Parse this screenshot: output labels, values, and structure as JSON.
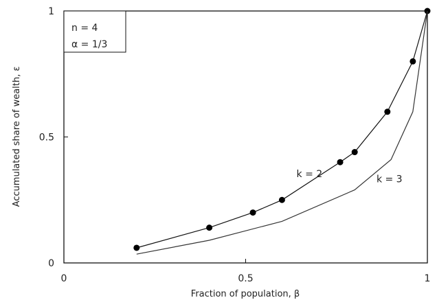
{
  "chart_data": {
    "type": "line",
    "xlabel": "Fraction of population, β",
    "ylabel": "Accumulated share of wealth, ε",
    "xlim": [
      0,
      1
    ],
    "ylim": [
      0,
      1
    ],
    "x_ticks": [
      {
        "value": 0,
        "label": "0"
      },
      {
        "value": 0.5,
        "label": "0.5"
      },
      {
        "value": 1,
        "label": "1"
      }
    ],
    "y_ticks": [
      {
        "value": 0,
        "label": "0"
      },
      {
        "value": 0.5,
        "label": "0.5"
      },
      {
        "value": 1,
        "label": "1"
      }
    ],
    "grid": false,
    "annotations": [
      "n = 4",
      "α = 1/3"
    ],
    "series": [
      {
        "name": "k = 2",
        "color": "#111111",
        "marker": "filled-circle",
        "x": [
          0.2,
          0.4,
          0.52,
          0.6,
          0.76,
          0.8,
          0.89,
          0.96,
          1.0
        ],
        "y": [
          0.06,
          0.14,
          0.2,
          0.25,
          0.4,
          0.44,
          0.6,
          0.8,
          1.0
        ]
      },
      {
        "name": "k = 3",
        "color": "#333333",
        "marker": "none",
        "x": [
          0.2,
          0.4,
          0.6,
          0.8,
          0.9,
          0.96,
          1.0
        ],
        "y": [
          0.035,
          0.09,
          0.165,
          0.29,
          0.41,
          0.6,
          1.0
        ]
      }
    ],
    "series_label_positions": [
      {
        "series": "k = 2",
        "x": 0.64,
        "y": 0.34
      },
      {
        "series": "k = 3",
        "x": 0.86,
        "y": 0.32
      }
    ]
  }
}
